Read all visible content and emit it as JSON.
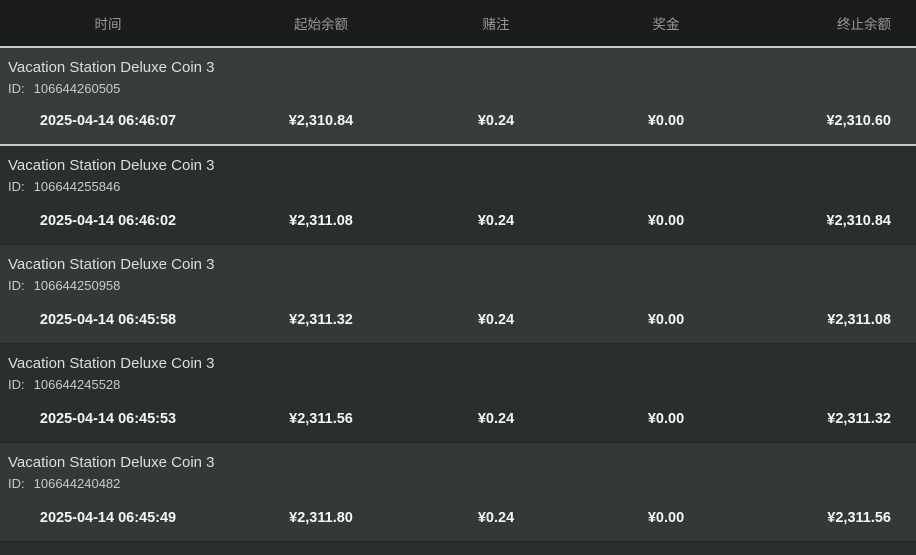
{
  "table": {
    "columns": [
      {
        "key": "time",
        "label": "时间"
      },
      {
        "key": "start_balance",
        "label": "起始余额"
      },
      {
        "key": "bet",
        "label": "赌注"
      },
      {
        "key": "prize",
        "label": "奖金"
      },
      {
        "key": "end_balance",
        "label": "终止余额"
      }
    ],
    "rows": [
      {
        "game": "Vacation Station Deluxe Coin 3",
        "id_label": "ID:",
        "id": "106644260505",
        "time": "2025-04-14 06:46:07",
        "start_balance": "¥2,310.84",
        "bet": "¥0.24",
        "prize": "¥0.00",
        "end_balance": "¥2,310.60"
      },
      {
        "game": "Vacation Station Deluxe Coin 3",
        "id_label": "ID:",
        "id": "106644255846",
        "time": "2025-04-14 06:46:02",
        "start_balance": "¥2,311.08",
        "bet": "¥0.24",
        "prize": "¥0.00",
        "end_balance": "¥2,310.84"
      },
      {
        "game": "Vacation Station Deluxe Coin 3",
        "id_label": "ID:",
        "id": "106644250958",
        "time": "2025-04-14 06:45:58",
        "start_balance": "¥2,311.32",
        "bet": "¥0.24",
        "prize": "¥0.00",
        "end_balance": "¥2,311.08"
      },
      {
        "game": "Vacation Station Deluxe Coin 3",
        "id_label": "ID:",
        "id": "106644245528",
        "time": "2025-04-14 06:45:53",
        "start_balance": "¥2,311.56",
        "bet": "¥0.24",
        "prize": "¥0.00",
        "end_balance": "¥2,311.32"
      },
      {
        "game": "Vacation Station Deluxe Coin 3",
        "id_label": "ID:",
        "id": "106644240482",
        "time": "2025-04-14 06:45:49",
        "start_balance": "¥2,311.80",
        "bet": "¥0.24",
        "prize": "¥0.00",
        "end_balance": "¥2,311.56"
      }
    ]
  },
  "colors": {
    "header_bg": "#1a1c1e",
    "header_text": "#96989a",
    "row_light": "#353839",
    "row_dark": "#2b2e2f",
    "highlight_border": "#c4c9cb",
    "value_text": "#f5f5f5"
  }
}
